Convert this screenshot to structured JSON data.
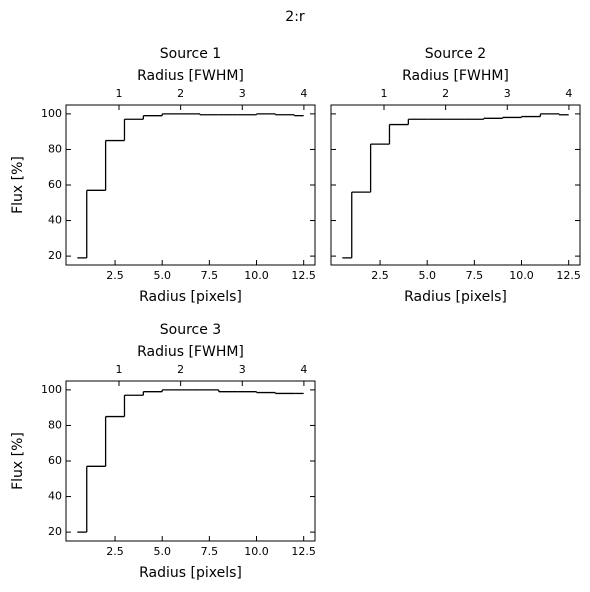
{
  "title": "2:r",
  "chart_data": [
    {
      "type": "step",
      "step": "mid",
      "title": "Source 1",
      "x2label": "Radius [FWHM]",
      "xlabel": "Radius [pixels]",
      "ylabel": "Flux [%]",
      "show_ytick_labels": true,
      "color": "#000000",
      "x": [
        0.5,
        1.5,
        2.5,
        3.5,
        4.5,
        5.5,
        6.5,
        7.5,
        8.5,
        9.5,
        10.5,
        11.5,
        12.5
      ],
      "values": [
        19,
        57,
        85,
        97,
        99,
        100,
        100,
        99.5,
        99.5,
        99.5,
        100,
        99.5,
        99
      ],
      "xlim": [
        -0.1,
        13.1
      ],
      "xticks": [
        2.5,
        {
          "value": 5,
          "label": "5.0"
        },
        7.5,
        {
          "value": 10,
          "label": "10.0"
        },
        12.5
      ],
      "ylim": [
        15,
        105
      ],
      "yticks": [
        20,
        40,
        60,
        80,
        100
      ],
      "x2lim": [
        0.14,
        4.18
      ],
      "x2ticks": [
        1,
        2,
        3,
        4
      ]
    },
    {
      "type": "step",
      "step": "mid",
      "title": "Source 2",
      "x2label": "Radius [FWHM]",
      "xlabel": "Radius [pixels]",
      "show_ytick_labels": false,
      "color": "#000000",
      "x": [
        0.5,
        1.5,
        2.5,
        3.5,
        4.5,
        5.5,
        6.5,
        7.5,
        8.5,
        9.5,
        10.5,
        11.5,
        12.5
      ],
      "values": [
        19,
        56,
        83,
        94,
        97,
        97,
        97,
        97,
        97.5,
        98,
        98.5,
        100,
        99.5
      ],
      "xlim": [
        -0.1,
        13.1
      ],
      "xticks": [
        2.5,
        {
          "value": 5,
          "label": "5.0"
        },
        7.5,
        {
          "value": 10,
          "label": "10.0"
        },
        12.5
      ],
      "ylim": [
        15,
        105
      ],
      "yticks": [
        20,
        40,
        60,
        80,
        100
      ],
      "x2lim": [
        0.14,
        4.18
      ],
      "x2ticks": [
        1,
        2,
        3,
        4
      ]
    },
    {
      "type": "step",
      "step": "mid",
      "title": "Source 3",
      "x2label": "Radius [FWHM]",
      "xlabel": "Radius [pixels]",
      "ylabel": "Flux [%]",
      "show_ytick_labels": true,
      "color": "#000000",
      "x": [
        0.5,
        1.5,
        2.5,
        3.5,
        4.5,
        5.5,
        6.5,
        7.5,
        8.5,
        9.5,
        10.5,
        11.5,
        12.5
      ],
      "values": [
        20,
        57,
        85,
        97,
        99,
        100,
        100,
        100,
        99,
        99,
        98.5,
        98,
        98
      ],
      "xlim": [
        -0.1,
        13.1
      ],
      "xticks": [
        2.5,
        {
          "value": 5,
          "label": "5.0"
        },
        7.5,
        {
          "value": 10,
          "label": "10.0"
        },
        12.5
      ],
      "ylim": [
        15,
        105
      ],
      "yticks": [
        20,
        40,
        60,
        80,
        100
      ],
      "x2lim": [
        0.14,
        4.18
      ],
      "x2ticks": [
        1,
        2,
        3,
        4
      ]
    }
  ]
}
